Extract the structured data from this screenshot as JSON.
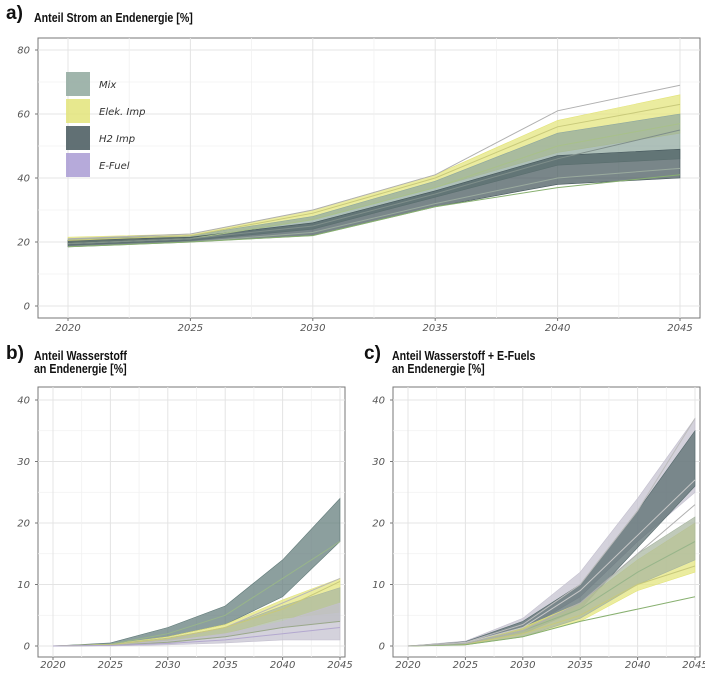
{
  "panels": {
    "a": {
      "letter": "a)",
      "title": "Anteil Strom an Endenergie [%]"
    },
    "b": {
      "letter": "b)",
      "title_line1": "Anteil Wasserstoff",
      "title_line2": "an Endenergie [%]"
    },
    "c": {
      "letter": "c)",
      "title_line1": "Anteil Wasserstoff + E-Fuels",
      "title_line2": "an Endenergie [%]"
    }
  },
  "legend": [
    {
      "name": "Mix",
      "color": "#8fa89e"
    },
    {
      "name": "Elek. Imp",
      "color": "#e3e47a"
    },
    {
      "name": "H2 Imp",
      "color": "#45575c"
    },
    {
      "name": "E-Fuel",
      "color": "#a99bd3"
    }
  ],
  "chart_data": [
    {
      "id": "a",
      "type": "area",
      "title": "Anteil Strom an Endenergie [%]",
      "x": [
        2020,
        2025,
        2030,
        2035,
        2040,
        2045
      ],
      "xticks": [
        "2020",
        "2025",
        "2030",
        "2035",
        "2040",
        "2045"
      ],
      "yticks": [
        "0",
        "20",
        "40",
        "60",
        "80"
      ],
      "ylim": [
        0,
        80
      ],
      "xlim": [
        2020,
        2045
      ],
      "grid": true,
      "legend_position": "top-left",
      "series": [
        {
          "name": "Elek. Imp",
          "color": "#e3e47a",
          "lower": [
            19.5,
            21,
            27,
            37,
            48,
            54
          ],
          "upper": [
            21.5,
            22.5,
            30,
            41,
            58,
            66
          ]
        },
        {
          "name": "Mix",
          "color": "#8fa89e",
          "lower": [
            19,
            20.5,
            24,
            34,
            44,
            46
          ],
          "upper": [
            21,
            22,
            28,
            39,
            54,
            60
          ]
        },
        {
          "name": "H2 Imp",
          "color": "#45575c",
          "lower": [
            18.5,
            20,
            22,
            31,
            38,
            40
          ],
          "upper": [
            20.5,
            21.5,
            26,
            36,
            47,
            49
          ]
        }
      ],
      "lines": [
        {
          "color": "#b0b0b0",
          "values": [
            21,
            22.5,
            30,
            41,
            61,
            69
          ]
        },
        {
          "color": "#a8c08a",
          "values": [
            19.5,
            21,
            27,
            37,
            50,
            57
          ]
        },
        {
          "color": "#c8c97a",
          "values": [
            20.5,
            22,
            29,
            40,
            56,
            63
          ]
        },
        {
          "color": "#9aaa9e",
          "values": [
            18.5,
            20,
            23,
            32,
            40,
            43
          ]
        },
        {
          "color": "#88b070",
          "values": [
            18.5,
            20,
            22,
            31,
            37,
            41
          ]
        },
        {
          "color": "#7f8e8a",
          "values": [
            19.5,
            21,
            25,
            35,
            46,
            55
          ]
        }
      ]
    },
    {
      "id": "b",
      "type": "area",
      "title": "Anteil Wasserstoff an Endenergie [%]",
      "x": [
        2020,
        2025,
        2030,
        2035,
        2040,
        2045
      ],
      "xticks": [
        "2020",
        "2025",
        "2030",
        "2035",
        "2040",
        "2045"
      ],
      "yticks": [
        "0",
        "10",
        "20",
        "30",
        "40"
      ],
      "ylim": [
        0,
        40
      ],
      "xlim": [
        2020,
        2045
      ],
      "grid": true,
      "series": [
        {
          "name": "H2 Imp",
          "color": "#607a78",
          "lower": [
            0,
            0.2,
            1.5,
            3.5,
            8,
            17
          ],
          "upper": [
            0,
            0.5,
            3,
            6.5,
            14,
            24
          ]
        },
        {
          "name": "Elek. Imp",
          "color": "#e3e47a",
          "lower": [
            0,
            0.1,
            0.8,
            2,
            4.5,
            5.5
          ],
          "upper": [
            0,
            0.3,
            1.5,
            3.5,
            7.5,
            11
          ]
        },
        {
          "name": "Mix",
          "color": "#a7b5a0",
          "lower": [
            0,
            0.1,
            0.5,
            1.5,
            3,
            4
          ],
          "upper": [
            0,
            0.3,
            1.3,
            3,
            6.5,
            9.5
          ]
        },
        {
          "name": "E-Fuel",
          "color": "#c4c0cf",
          "lower": [
            0,
            0,
            0.2,
            0.5,
            1,
            1
          ],
          "upper": [
            0,
            0.2,
            0.8,
            2,
            4,
            7
          ]
        }
      ],
      "lines": [
        {
          "color": "#98b58a",
          "values": [
            0,
            0.3,
            2,
            5,
            11,
            17
          ]
        },
        {
          "color": "#b8b8b8",
          "values": [
            0,
            0.2,
            1,
            3,
            7,
            11
          ]
        },
        {
          "color": "#c8c97a",
          "values": [
            0,
            0.2,
            1.2,
            3,
            6,
            10.5
          ]
        },
        {
          "color": "#9aa88a",
          "values": [
            0,
            0.1,
            0.6,
            1.5,
            3,
            4
          ]
        },
        {
          "color": "#b3a8cf",
          "values": [
            0,
            0.1,
            0.4,
            1,
            2,
            3
          ]
        }
      ]
    },
    {
      "id": "c",
      "type": "area",
      "title": "Anteil Wasserstoff + E-Fuels an Endenergie [%]",
      "x": [
        2020,
        2025,
        2030,
        2035,
        2040,
        2045
      ],
      "xticks": [
        "2020",
        "2025",
        "2030",
        "2035",
        "2040",
        "2045"
      ],
      "yticks": [
        "0",
        "10",
        "20",
        "30",
        "40"
      ],
      "ylim": [
        0,
        40
      ],
      "xlim": [
        2020,
        2045
      ],
      "grid": true,
      "series": [
        {
          "name": "E-Fuel",
          "color": "#c4c0cf",
          "lower": [
            0,
            0.3,
            2.5,
            8,
            17,
            25
          ],
          "upper": [
            0,
            0.8,
            4.5,
            12,
            24,
            37
          ]
        },
        {
          "name": "H2 Imp",
          "color": "#566a6c",
          "lower": [
            0,
            0.3,
            2,
            6,
            16,
            26
          ],
          "upper": [
            0,
            0.7,
            4,
            10,
            22,
            35
          ]
        },
        {
          "name": "Elek. Imp",
          "color": "#e3e47a",
          "lower": [
            0,
            0.2,
            1.5,
            4,
            9,
            12
          ],
          "upper": [
            0,
            0.5,
            3,
            7,
            14,
            20
          ]
        },
        {
          "name": "Mix",
          "color": "#a7b5a0",
          "lower": [
            0,
            0.2,
            1.5,
            4.5,
            10,
            14
          ],
          "upper": [
            0,
            0.5,
            2.5,
            7,
            15,
            21
          ]
        }
      ],
      "lines": [
        {
          "color": "#bdbdbd",
          "values": [
            0,
            0.6,
            3.5,
            10,
            22,
            37
          ]
        },
        {
          "color": "#c8c8c8",
          "values": [
            0,
            0.5,
            3,
            9,
            18,
            27
          ]
        },
        {
          "color": "#98b58a",
          "values": [
            0,
            0.4,
            2.5,
            6,
            12,
            17
          ]
        },
        {
          "color": "#c8c97a",
          "values": [
            0,
            0.3,
            2,
            5,
            10,
            13
          ]
        },
        {
          "color": "#88b070",
          "values": [
            0,
            0.2,
            1.5,
            4,
            6,
            8
          ]
        },
        {
          "color": "#b0b0b0",
          "values": [
            0,
            0.4,
            2.5,
            7,
            15,
            23
          ]
        }
      ]
    }
  ]
}
